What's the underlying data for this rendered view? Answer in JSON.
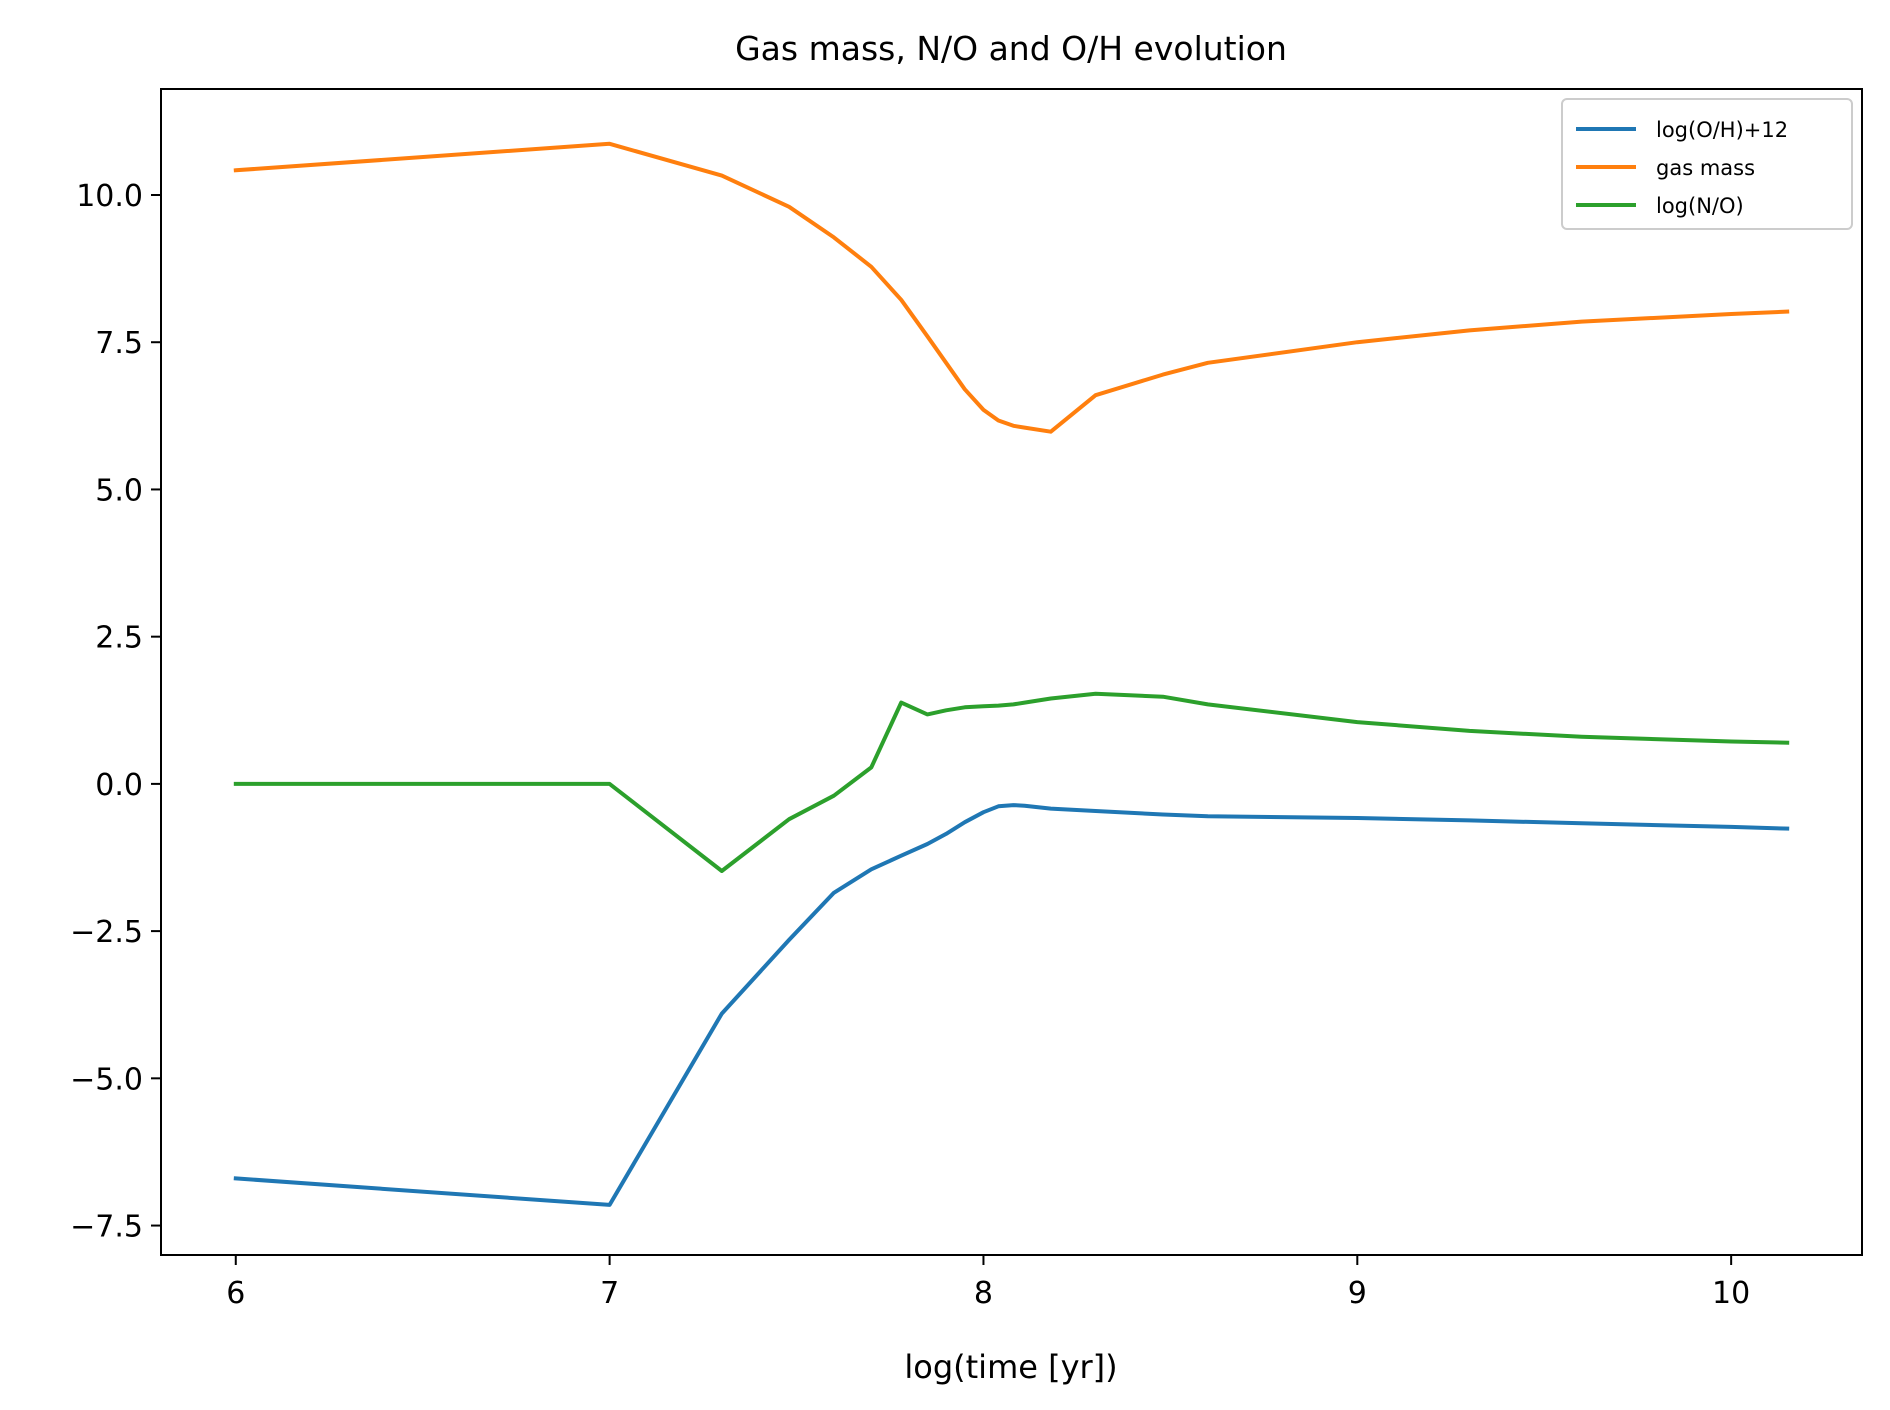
{
  "chart_data": {
    "type": "line",
    "title": "Gas mass, N/O and O/H evolution",
    "xlabel": "log(time [yr])",
    "ylabel": "",
    "xlim": [
      5.8,
      10.35
    ],
    "ylim": [
      -8.0,
      11.8
    ],
    "xticks": [
      6,
      7,
      8,
      9,
      10
    ],
    "xtick_labels": [
      "6",
      "7",
      "8",
      "9",
      "10"
    ],
    "yticks": [
      -7.5,
      -5.0,
      -2.5,
      0.0,
      2.5,
      5.0,
      7.5,
      10.0
    ],
    "ytick_labels": [
      "−7.5",
      "−5.0",
      "−2.5",
      "0.0",
      "2.5",
      "5.0",
      "7.5",
      "10.0"
    ],
    "grid": false,
    "legend_position": "top-right",
    "series": [
      {
        "name": "log(O/H)+12",
        "color": "#1f77b4",
        "x": [
          6.0,
          7.0,
          7.3,
          7.48,
          7.6,
          7.7,
          7.78,
          7.85,
          7.9,
          7.95,
          8.0,
          8.04,
          8.08,
          8.11,
          8.18,
          8.3,
          8.48,
          8.6,
          9.0,
          9.3,
          9.6,
          10.0,
          10.15
        ],
        "y": [
          -6.7,
          -7.15,
          -3.9,
          -2.65,
          -1.85,
          -1.45,
          -1.22,
          -1.02,
          -0.85,
          -0.65,
          -0.48,
          -0.38,
          -0.36,
          -0.37,
          -0.42,
          -0.46,
          -0.52,
          -0.55,
          -0.58,
          -0.62,
          -0.67,
          -0.73,
          -0.76
        ]
      },
      {
        "name": "gas mass",
        "color": "#ff7f0e",
        "x": [
          6.0,
          7.0,
          7.3,
          7.48,
          7.6,
          7.7,
          7.78,
          7.85,
          7.9,
          7.95,
          8.0,
          8.04,
          8.08,
          8.11,
          8.18,
          8.3,
          8.48,
          8.6,
          9.0,
          9.3,
          9.6,
          10.0,
          10.15
        ],
        "y": [
          10.42,
          10.87,
          10.33,
          9.8,
          9.28,
          8.78,
          8.22,
          7.6,
          7.15,
          6.7,
          6.35,
          6.17,
          6.08,
          6.05,
          5.98,
          6.6,
          6.95,
          7.15,
          7.5,
          7.7,
          7.85,
          7.98,
          8.02
        ]
      },
      {
        "name": "log(N/O)",
        "color": "#2ca02c",
        "x": [
          6.0,
          7.0,
          7.3,
          7.48,
          7.6,
          7.7,
          7.78,
          7.85,
          7.9,
          7.95,
          8.0,
          8.04,
          8.08,
          8.11,
          8.18,
          8.3,
          8.48,
          8.6,
          9.0,
          9.3,
          9.6,
          10.0,
          10.15
        ],
        "y": [
          0.0,
          0.0,
          -1.48,
          -0.6,
          -0.2,
          0.28,
          1.38,
          1.18,
          1.25,
          1.3,
          1.32,
          1.33,
          1.35,
          1.38,
          1.45,
          1.53,
          1.48,
          1.35,
          1.05,
          0.9,
          0.8,
          0.72,
          0.7
        ]
      }
    ]
  }
}
